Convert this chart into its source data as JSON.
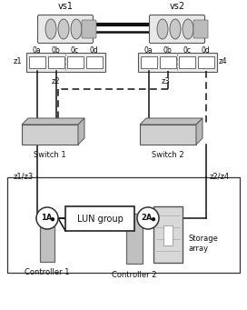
{
  "bg_color": "#ffffff",
  "vs1_label": "vs1",
  "vs2_label": "vs2",
  "ports": [
    "0a",
    "0b",
    "0c",
    "0d"
  ],
  "switch1_label": "Switch 1",
  "switch2_label": "Switch 2",
  "z1_label": "z1",
  "z2_label": "z2",
  "z3_label": "z3",
  "z4_label": "z4",
  "z1z3_label": "z1/z3",
  "z2z4_label": "z2/z4",
  "lun_label": "LUN group",
  "storage_label": "Storage\narray",
  "ctrl1_label": "Controller 1",
  "ctrl2_label": "Controller 2",
  "port1A_label": "1A",
  "port2A_label": "2A"
}
